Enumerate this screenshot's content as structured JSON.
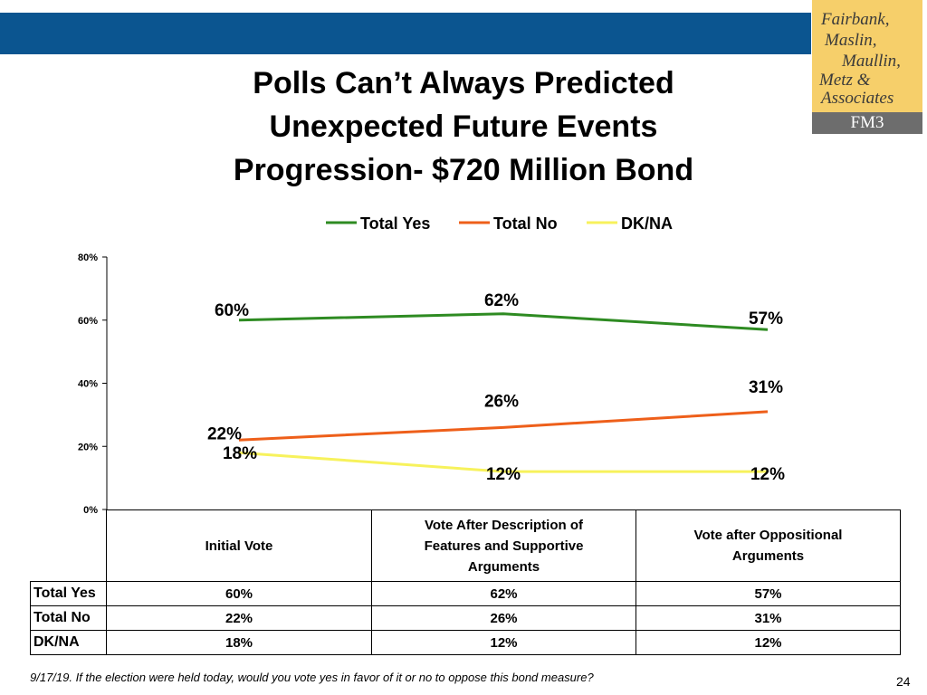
{
  "title_lines": [
    "Polls Can’t Always Predicted",
    "Unexpected Future Events",
    "Progression- $720 Million Bond"
  ],
  "logo": {
    "lines": [
      "Fairbank,",
      "Maslin,",
      "Maullin,",
      "Metz &",
      "Associates"
    ],
    "abbr": "FM3"
  },
  "colors": {
    "header_band": "#0b5590",
    "logo_bg": "#f6cf6a",
    "logo_bar": "#6d6d6d",
    "total_yes": "#2e8b22",
    "total_no": "#ee5f1a",
    "dk_na": "#f7f25c"
  },
  "chart_data": {
    "type": "line",
    "categories": [
      "Initial Vote",
      "Vote After Description of Features and Supportive Arguments",
      "Vote after Oppositional Arguments"
    ],
    "series": [
      {
        "name": "Total Yes",
        "values": [
          60,
          62,
          57
        ],
        "labels": [
          "60%",
          "62%",
          "57%"
        ]
      },
      {
        "name": "Total No",
        "values": [
          22,
          26,
          31
        ],
        "labels": [
          "22%",
          "26%",
          "31%"
        ]
      },
      {
        "name": "DK/NA",
        "values": [
          18,
          12,
          12
        ],
        "labels": [
          "18%",
          "12%",
          "12%"
        ]
      }
    ],
    "ylim": [
      0,
      80
    ],
    "yticks": [
      0,
      20,
      40,
      60,
      80
    ],
    "ytick_labels": [
      "0%",
      "20%",
      "40%",
      "60%",
      "80%"
    ],
    "legend_position": "top"
  },
  "table": {
    "headers": [
      [
        "Initial Vote"
      ],
      [
        "Vote After Description of",
        "Features and Supportive",
        "Arguments"
      ],
      [
        "Vote after Oppositional",
        "Arguments"
      ]
    ],
    "rows": [
      {
        "label": "Total Yes",
        "cells": [
          "60%",
          "62%",
          "57%"
        ]
      },
      {
        "label": "Total No",
        "cells": [
          "22%",
          "26%",
          "31%"
        ]
      },
      {
        "label": "DK/NA",
        "cells": [
          "18%",
          "12%",
          "12%"
        ]
      }
    ]
  },
  "footnote": "9/17/19. If the election were held today, would you vote yes in favor of it or no to oppose this bond measure?",
  "page_number": "24"
}
